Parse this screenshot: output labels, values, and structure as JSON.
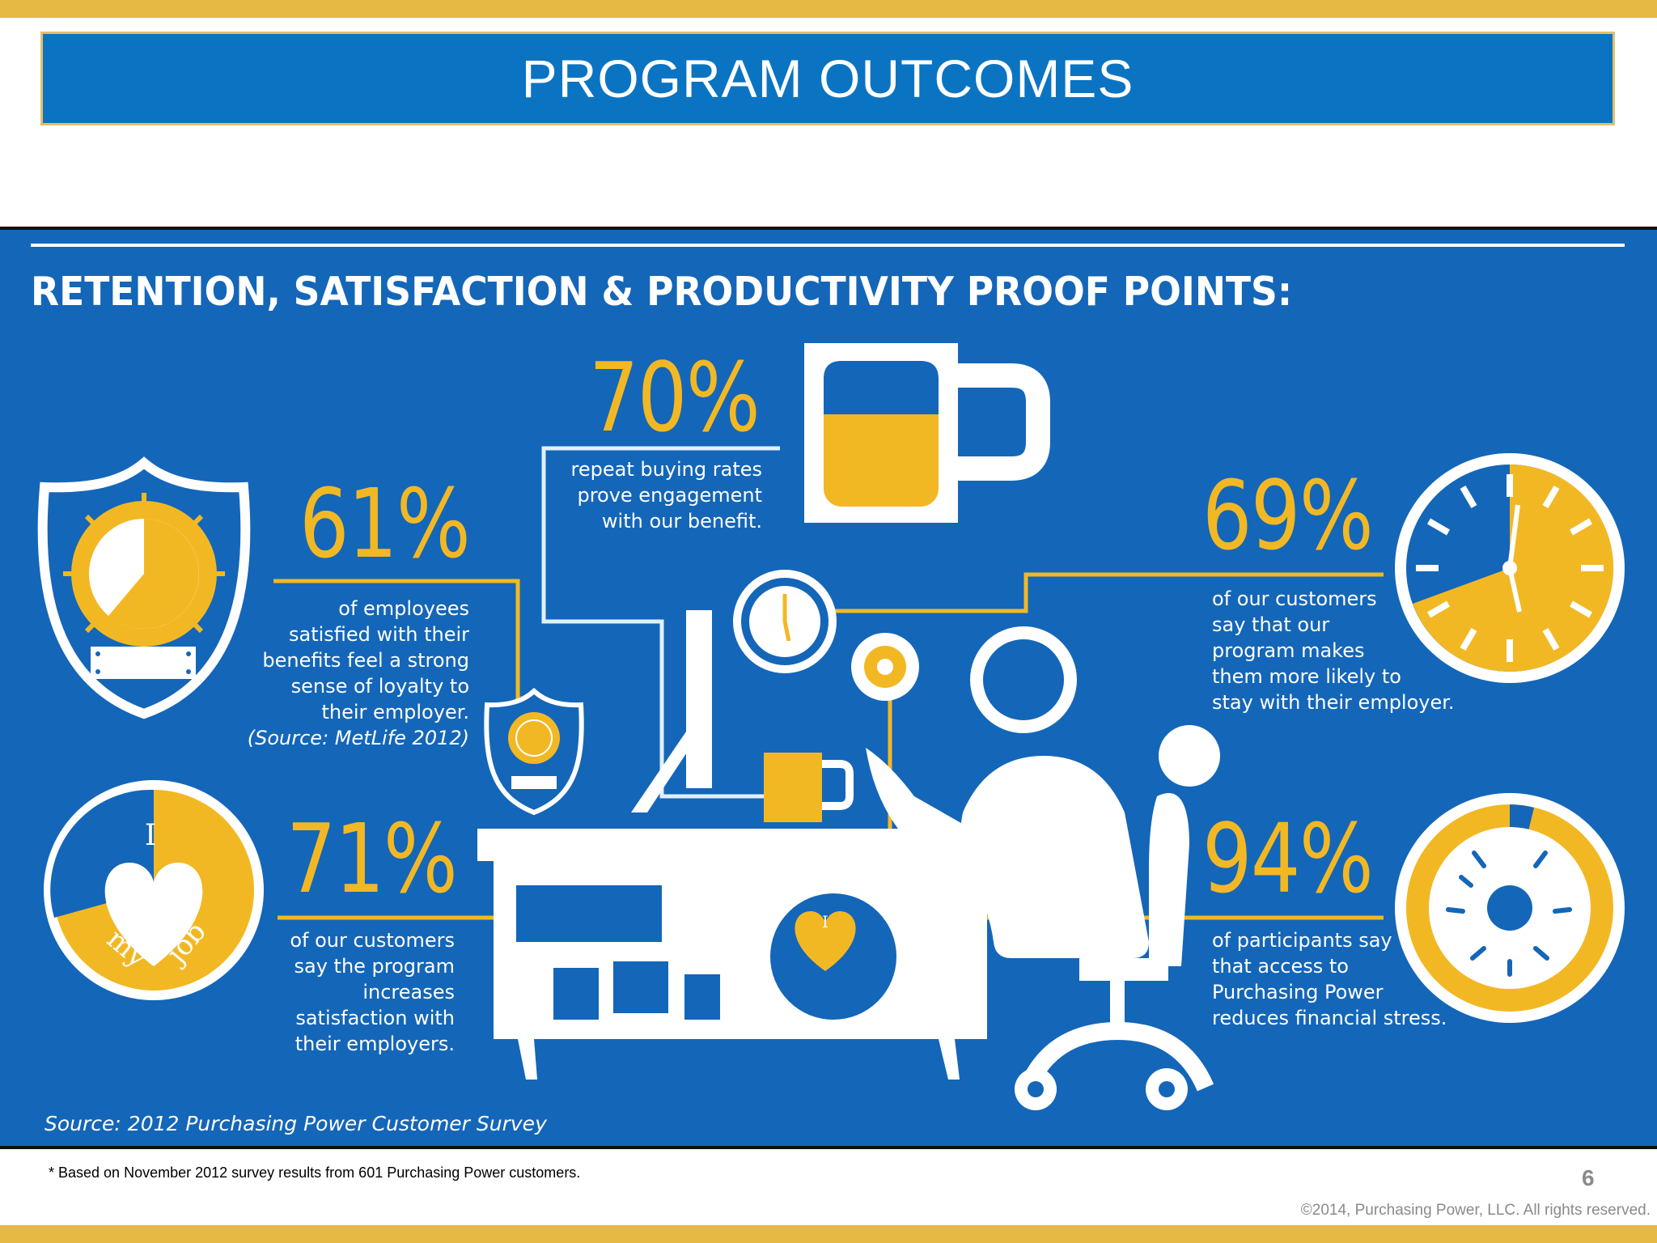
{
  "slide": {
    "title": "PROGRAM OUTCOMES",
    "footnote": "* Based on November 2012 survey results from 601 Purchasing Power customers.",
    "page_number": "6",
    "copyright": "©2014, Purchasing Power, LLC. All rights reserved."
  },
  "infographic": {
    "heading": "RETENTION, SATISFACTION & PRODUCTIVITY PROOF POINTS:",
    "source": "Source: 2012 Purchasing Power Customer Survey",
    "stats": [
      {
        "value": "70%",
        "text": "repeat buying rates\nprove engagement\nwith our benefit."
      },
      {
        "value": "61%",
        "text": "of employees\nsatisfied with their\nbenefits feel a strong\nsense of loyalty to\ntheir employer.",
        "source": "(Source: MetLife 2012)"
      },
      {
        "value": "69%",
        "text": "of our customers\nsay that our\nprogram makes\nthem more likely to\nstay with their employer."
      },
      {
        "value": "71%",
        "text": "of our customers\nsay the program\nincreases\nsatisfaction with\ntheir employers."
      },
      {
        "value": "94%",
        "text": "of participants say\nthat access to\nPurchasing Power\nreduces financial stress."
      }
    ],
    "badge_text": {
      "i": "I",
      "my": "my",
      "job": "job"
    }
  },
  "colors": {
    "blue": "#1466b8",
    "gold": "#f2b824",
    "title_blue": "#0a74c2",
    "accent_bar": "#e6b945"
  }
}
